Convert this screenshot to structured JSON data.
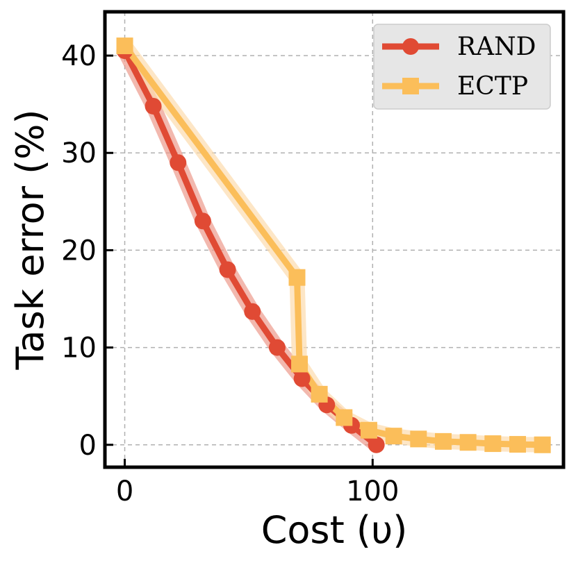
{
  "chart_data": {
    "type": "line",
    "title": "",
    "xlabel": "Cost (υ)",
    "ylabel": "Task error (%)",
    "xlim": [
      -8,
      177
    ],
    "ylim": [
      -2.3,
      44.5
    ],
    "xticks": [
      0,
      100
    ],
    "yticks": [
      0,
      10,
      20,
      30,
      40
    ],
    "grid": true,
    "legend_position": "top-right",
    "series": [
      {
        "name": "RAND",
        "marker": "circle",
        "color": "#e04a34",
        "band_color": "#ec9a8c",
        "x": [
          0,
          11.5,
          21.5,
          31.5,
          41.5,
          51.5,
          61.5,
          71.5,
          81.5,
          91.5,
          101.5
        ],
        "y": [
          40.5,
          34.8,
          29.0,
          23.0,
          18.0,
          13.7,
          10.0,
          6.8,
          4.1,
          2.0,
          0.0
        ]
      },
      {
        "name": "ECTP",
        "marker": "square",
        "color": "#fbbe5a",
        "band_color": "#fcdcae",
        "x": [
          0,
          69.5,
          70.5,
          78.5,
          88.5,
          98.5,
          108.5,
          118.5,
          128.5,
          138.5,
          148.5,
          158.5,
          168.5
        ],
        "y": [
          41.0,
          17.2,
          8.3,
          5.2,
          2.8,
          1.5,
          0.9,
          0.6,
          0.35,
          0.25,
          0.12,
          0.05,
          0.0
        ]
      }
    ]
  }
}
